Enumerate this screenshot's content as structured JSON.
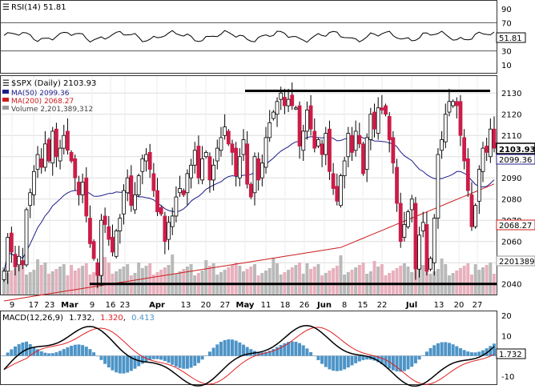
{
  "rsi_panel": {
    "label": "RSI(14) 51.81",
    "value_label": "51.81",
    "ticks": [
      "90",
      "70",
      "50",
      "30",
      "10"
    ]
  },
  "price_panel": {
    "title": "$SPX (Daily) 2103.93",
    "ma50_label": "MA(50) 2099.36",
    "ma200_label": "MA(200) 2068.27",
    "volume_label": "Volume 2,201,389,312",
    "last_price_label": "2103.93",
    "ma50_value_label": "2099.36",
    "ma200_value_label": "2068.27",
    "volume_value_label": "2201389",
    "y_ticks": [
      "2130",
      "2120",
      "2110",
      "2100",
      "2090",
      "2080",
      "2070",
      "2060",
      "2050",
      "2040"
    ]
  },
  "macd_panel": {
    "label_name": "MACD(12,26,9)",
    "label_macd": "1.732",
    "label_signal": "1.320",
    "label_hist": "0.413",
    "value_label": "1.732",
    "y_ticks": [
      "20",
      "10",
      "0",
      "-10"
    ]
  },
  "x_axis": {
    "labels": [
      "9",
      "17",
      "23",
      "Mar",
      "9",
      "16",
      "23",
      "Apr",
      "13",
      "20",
      "27",
      "May",
      "11",
      "18",
      "26",
      "Jun",
      "8",
      "15",
      "22",
      "Jul",
      "13",
      "20",
      "27"
    ]
  },
  "colors": {
    "up": "#ffffff",
    "down": "#cc1c48",
    "ma50": "#1c1c8c",
    "ma200": "#cc1c1c",
    "volume_up": "#b9b9b9",
    "volume_down": "#e8b0bd",
    "macd_hist": "#4d94c7",
    "macd_line": "#000000",
    "signal_line": "#e02020",
    "support": "#000000"
  },
  "chart_data": {
    "type": "candlestick",
    "symbol": "$SPX",
    "ylim": [
      2035,
      2138
    ],
    "support_level": 2040,
    "resistance_level": 2131,
    "close": [
      2046,
      2062,
      2055,
      2048,
      2053,
      2049,
      2075,
      2083,
      2093,
      2101,
      2095,
      2106,
      2098,
      2112,
      2100,
      2104,
      2110,
      2103,
      2098,
      2090,
      2082,
      2088,
      2072,
      2059,
      2052,
      2044,
      2070,
      2068,
      2061,
      2055,
      2065,
      2071,
      2084,
      2090,
      2077,
      2082,
      2091,
      2099,
      2101,
      2094,
      2084,
      2074,
      2073,
      2060,
      2069,
      2072,
      2081,
      2085,
      2082,
      2092,
      2096,
      2103,
      2090,
      2099,
      2102,
      2089,
      2096,
      2104,
      2109,
      2114,
      2106,
      2102,
      2091,
      2100,
      2108,
      2087,
      2081,
      2100,
      2089,
      2097,
      2109,
      2116,
      2121,
      2126,
      2130,
      2124,
      2127,
      2124,
      2123,
      2105,
      2112,
      2122,
      2113,
      2104,
      2108,
      2101,
      2111,
      2093,
      2085,
      2079,
      2091,
      2098,
      2111,
      2102,
      2112,
      2106,
      2092,
      2109,
      2120,
      2113,
      2123,
      2122,
      2120,
      2108,
      2097,
      2078,
      2060,
      2068,
      2074,
      2080,
      2047,
      2063,
      2069,
      2046,
      2052,
      2071,
      2101,
      2108,
      2120,
      2126,
      2126,
      2124,
      2110,
      2098,
      2084,
      2067,
      2077,
      2094,
      2104,
      2102,
      2113,
      2104
    ]
  }
}
